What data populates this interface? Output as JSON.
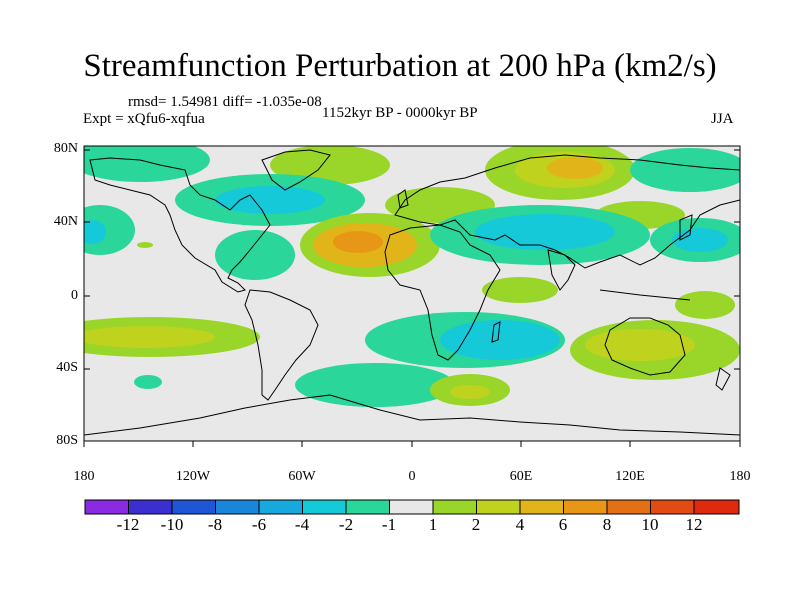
{
  "title": "Streamfunction Perturbation at 200 hPa (km2/s)",
  "stats": "rmsd= 1.54981 diff= -1.035e-08",
  "experiment": "Expt = xQfu6-xqfua",
  "period": "1152kyr BP - 0000kyr BP",
  "season": "JJA",
  "y_axis_labels": [
    "80N",
    "40N",
    "0",
    "40S",
    "80S"
  ],
  "x_axis_labels": [
    "180",
    "120W",
    "60W",
    "0",
    "60E",
    "120E",
    "180"
  ],
  "colorbar": {
    "labels": [
      "-12",
      "-10",
      "-8",
      "-6",
      "-4",
      "-2",
      "-1",
      "1",
      "2",
      "4",
      "6",
      "8",
      "10",
      "12"
    ],
    "colors": [
      "#8a2be2",
      "#3b2fd0",
      "#1e56d6",
      "#1a86d9",
      "#17a9de",
      "#16c9d8",
      "#2ad69a",
      "#e8e8e8",
      "#9ad62a",
      "#bfd21e",
      "#e1b51a",
      "#e79615",
      "#e56f13",
      "#e24b12",
      "#e02a0e"
    ]
  },
  "field_colors": {
    "neutral": "#e8e8e8",
    "neg1": "#2ad69a",
    "neg2": "#16c9d8",
    "pos1": "#9ad62a",
    "pos2": "#bfd21e",
    "pos3": "#e1b51a",
    "pos4": "#e79615"
  }
}
